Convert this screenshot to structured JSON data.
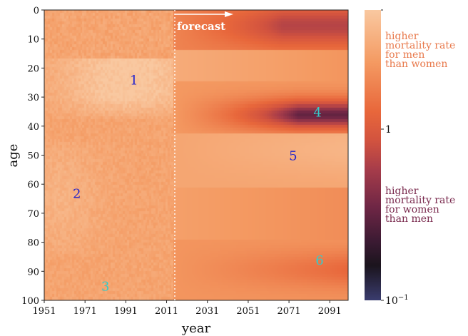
{
  "chart_data": {
    "type": "heatmap",
    "title": "",
    "xlabel": "year",
    "ylabel": "age",
    "x_range": [
      1951,
      2100
    ],
    "y_range": [
      0,
      100
    ],
    "y_inverted": true,
    "x_ticks": [
      "1951",
      "1971",
      "1991",
      "2011",
      "2031",
      "2051",
      "2071",
      "2091"
    ],
    "y_ticks": [
      "0",
      "10",
      "20",
      "30",
      "40",
      "50",
      "60",
      "70",
      "80",
      "90",
      "100"
    ],
    "forecast_start_year": 2015,
    "forecast_label": "forecast",
    "colorbar": {
      "scale": "log",
      "range": [
        0.1,
        2.2
      ],
      "tick_labels": [
        "1",
        "10^{-1}"
      ],
      "tick_values": [
        1,
        0.1
      ],
      "upper_label": [
        "higher",
        "mortality rate",
        "for men",
        "than women"
      ],
      "lower_label": [
        "higher",
        "mortality rate",
        "for women",
        "than men"
      ],
      "upper_label_color": "#e8784a",
      "lower_label_color": "#7a2a4e"
    },
    "region_labels": [
      {
        "text": "1",
        "year": 1995,
        "age": 24,
        "color": "#2222cc"
      },
      {
        "text": "2",
        "year": 1967,
        "age": 63,
        "color": "#2222cc"
      },
      {
        "text": "3",
        "year": 1981,
        "age": 95,
        "color": "#33cccc"
      },
      {
        "text": "4",
        "year": 2085,
        "age": 35,
        "color": "#33cccc"
      },
      {
        "text": "5",
        "year": 2073,
        "age": 50,
        "color": "#2222cc"
      },
      {
        "text": "6",
        "year": 2086,
        "age": 86,
        "color": "#33cccc"
      }
    ],
    "regions_described": [
      {
        "label": "1",
        "age_range": [
          17,
          37
        ],
        "year_range": [
          1961,
          2015
        ],
        "ratio_approx": 2.0
      },
      {
        "label": "2",
        "age_range": [
          50,
          80
        ],
        "year_range": [
          1951,
          1975
        ],
        "ratio_approx": 1.5
      },
      {
        "label": "3",
        "age_range": [
          85,
          100
        ],
        "year_range": [
          1951,
          2015
        ],
        "ratio_approx": 1.4
      },
      {
        "label": "4",
        "age_range": [
          28,
          42
        ],
        "year_range": [
          2031,
          2100
        ],
        "ratio_approx": 0.25
      },
      {
        "label": "5",
        "age_range": [
          42,
          60
        ],
        "year_range": [
          2040,
          2100
        ],
        "ratio_approx": 1.6
      },
      {
        "label": "6",
        "age_range": [
          80,
          95
        ],
        "year_range": [
          2060,
          2100
        ],
        "ratio_approx": 0.8
      }
    ]
  }
}
